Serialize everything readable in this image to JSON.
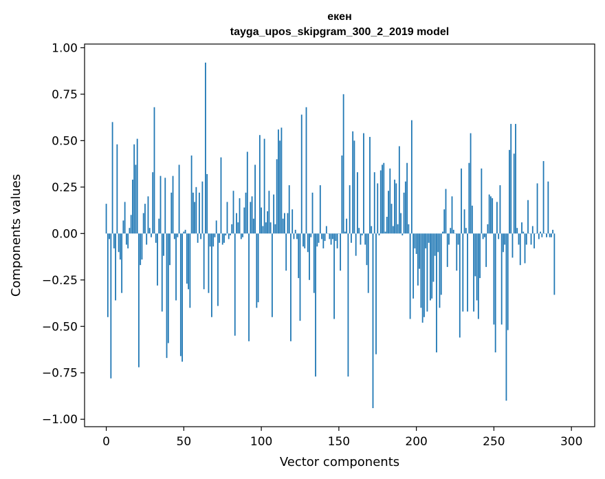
{
  "chart_data": {
    "type": "bar",
    "title_lines": [
      "екен",
      "tayga_upos_skipgram_300_2_2019 model"
    ],
    "xlabel": "Vector components",
    "ylabel": "Components values",
    "xlim": [
      -14,
      315
    ],
    "ylim": [
      -1.04,
      1.02
    ],
    "x_ticks": [
      0,
      50,
      100,
      150,
      200,
      250,
      300
    ],
    "x_tick_labels": [
      "0",
      "50",
      "100",
      "150",
      "200",
      "250",
      "300"
    ],
    "y_ticks": [
      1.0,
      0.75,
      0.5,
      0.25,
      0.0,
      -0.25,
      -0.5,
      -0.75,
      -1.0
    ],
    "y_tick_labels": [
      "1.00",
      "0.75",
      "0.50",
      "0.25",
      "0.00",
      "−0.25",
      "−0.50",
      "−0.75",
      "−1.00"
    ],
    "bar_color": "#1f77b4",
    "grid": false,
    "values": [
      0.16,
      -0.45,
      -0.03,
      -0.78,
      0.6,
      -0.08,
      -0.36,
      0.48,
      -0.1,
      -0.14,
      -0.32,
      0.07,
      0.17,
      -0.06,
      -0.08,
      0.03,
      0.1,
      0.29,
      0.48,
      0.37,
      0.51,
      -0.72,
      -0.17,
      -0.14,
      0.11,
      0.16,
      -0.06,
      0.2,
      0.03,
      -0.02,
      0.33,
      0.68,
      -0.05,
      -0.28,
      0.08,
      0.31,
      -0.42,
      -0.12,
      0.3,
      -0.67,
      -0.59,
      -0.17,
      0.22,
      0.31,
      -0.03,
      -0.36,
      -0.02,
      0.37,
      -0.66,
      -0.69,
      0.01,
      0.02,
      -0.27,
      -0.3,
      -0.4,
      0.42,
      0.22,
      0.17,
      0.25,
      -0.05,
      0.22,
      -0.03,
      0.28,
      -0.3,
      0.92,
      0.32,
      -0.32,
      -0.07,
      -0.45,
      -0.07,
      -0.02,
      0.07,
      -0.39,
      -0.05,
      0.41,
      -0.06,
      -0.05,
      -0.01,
      0.17,
      -0.03,
      -0.01,
      0.05,
      0.23,
      -0.55,
      0.11,
      0.06,
      0.19,
      -0.03,
      -0.02,
      0.14,
      0.22,
      0.44,
      -0.58,
      0.17,
      0.2,
      0.08,
      0.37,
      -0.4,
      -0.37,
      0.53,
      0.14,
      0.04,
      0.51,
      0.06,
      0.12,
      0.23,
      0.06,
      -0.45,
      0.21,
      0.05,
      0.4,
      0.56,
      0.5,
      0.57,
      0.08,
      0.11,
      -0.2,
      0.11,
      0.26,
      -0.58,
      0.13,
      -0.03,
      0.02,
      -0.03,
      -0.24,
      -0.47,
      0.64,
      -0.07,
      -0.08,
      0.68,
      -0.1,
      -0.25,
      -0.02,
      0.22,
      -0.32,
      -0.77,
      -0.07,
      -0.05,
      0.26,
      -0.03,
      -0.08,
      -0.04,
      0.04,
      0.0,
      -0.03,
      -0.06,
      -0.03,
      -0.46,
      -0.04,
      -0.08,
      0.0,
      -0.2,
      0.42,
      0.75,
      0.01,
      0.08,
      -0.77,
      0.26,
      -0.05,
      0.55,
      0.5,
      -0.12,
      0.33,
      0.03,
      -0.06,
      -0.01,
      0.54,
      -0.06,
      -0.17,
      -0.32,
      0.52,
      0.04,
      -0.94,
      0.33,
      -0.65,
      0.27,
      -0.01,
      0.34,
      0.37,
      0.38,
      0.01,
      0.09,
      0.23,
      0.35,
      0.16,
      0.04,
      0.29,
      0.27,
      0.05,
      0.47,
      0.11,
      -0.01,
      0.22,
      0.28,
      0.38,
      0.05,
      -0.46,
      0.61,
      -0.35,
      -0.08,
      -0.11,
      -0.28,
      -0.19,
      -0.4,
      -0.48,
      -0.45,
      -0.08,
      -0.42,
      -0.05,
      -0.36,
      -0.35,
      -0.26,
      -0.12,
      -0.64,
      -0.1,
      -0.4,
      -0.33,
      0.01,
      0.13,
      0.24,
      -0.18,
      -0.06,
      0.03,
      0.2,
      0.02,
      0.0,
      -0.2,
      -0.06,
      -0.56,
      0.35,
      -0.42,
      0.13,
      0.03,
      -0.42,
      0.38,
      0.54,
      0.15,
      -0.42,
      -0.23,
      -0.36,
      -0.46,
      -0.24,
      0.35,
      -0.03,
      -0.02,
      -0.18,
      0.05,
      0.21,
      0.2,
      0.19,
      -0.49,
      -0.64,
      0.17,
      -0.03,
      0.26,
      -0.49,
      -0.1,
      -0.06,
      -0.9,
      -0.52,
      0.45,
      0.59,
      -0.13,
      0.43,
      0.59,
      0.03,
      -0.06,
      -0.17,
      0.06,
      0.01,
      -0.16,
      -0.06,
      0.18,
      0.0,
      -0.06,
      0.04,
      -0.08,
      0.0,
      0.27,
      -0.03,
      0.01,
      -0.02,
      0.39,
      0.0,
      -0.02,
      0.28,
      -0.02,
      -0.02,
      0.02,
      -0.33
    ]
  }
}
